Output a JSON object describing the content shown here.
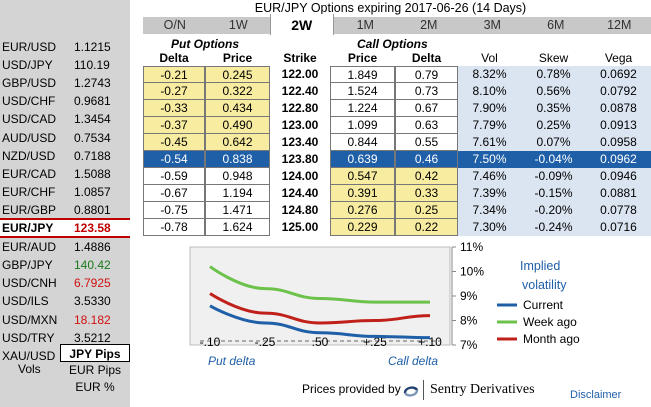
{
  "title": "EUR/JPY Options expiring 2017-06-26 (14 Days)",
  "tabs": [
    "O/N",
    "1W",
    "2W",
    "1M",
    "2M",
    "3M",
    "6M",
    "12M"
  ],
  "active_tab": "2W",
  "sidebar": {
    "pairs": [
      {
        "name": "EUR/USD",
        "rate": "1.1215",
        "state": "normal"
      },
      {
        "name": "USD/JPY",
        "rate": "110.19",
        "state": "normal"
      },
      {
        "name": "GBP/USD",
        "rate": "1.2743",
        "state": "normal"
      },
      {
        "name": "USD/CHF",
        "rate": "0.9681",
        "state": "normal"
      },
      {
        "name": "USD/CAD",
        "rate": "1.3454",
        "state": "normal"
      },
      {
        "name": "AUD/USD",
        "rate": "0.7534",
        "state": "normal"
      },
      {
        "name": "NZD/USD",
        "rate": "0.7188",
        "state": "normal"
      },
      {
        "name": "EUR/CAD",
        "rate": "1.5088",
        "state": "normal"
      },
      {
        "name": "EUR/CHF",
        "rate": "1.0857",
        "state": "normal"
      },
      {
        "name": "EUR/GBP",
        "rate": "0.8801",
        "state": "normal"
      },
      {
        "name": "EUR/JPY",
        "rate": "123.58",
        "state": "selected"
      },
      {
        "name": "EUR/AUD",
        "rate": "1.4886",
        "state": "normal"
      },
      {
        "name": "GBP/JPY",
        "rate": "140.42",
        "state": "up"
      },
      {
        "name": "USD/CNH",
        "rate": "6.7925",
        "state": "down"
      },
      {
        "name": "USD/ILS",
        "rate": "3.5330",
        "state": "normal"
      },
      {
        "name": "USD/MXN",
        "rate": "18.182",
        "state": "down"
      },
      {
        "name": "USD/TRY",
        "rate": "3.5212",
        "state": "normal"
      },
      {
        "name": "XAU/USD",
        "rate": "1267.4",
        "state": "normal"
      }
    ],
    "units_label": "Vols",
    "units": [
      "JPY Pips",
      "EUR Pips",
      "EUR %"
    ],
    "active_unit": "JPY Pips"
  },
  "table": {
    "put_title": "Put Options",
    "call_title": "Call Options",
    "headers": [
      "Delta",
      "Price",
      "Strike",
      "Price",
      "Delta",
      "Vol",
      "Skew",
      "Vega"
    ],
    "rows": [
      {
        "put_delta": "-0.21",
        "put_price": "0.245",
        "strike": "122.00",
        "call_price": "1.849",
        "call_delta": "0.79",
        "vol": "8.32%",
        "skew": "0.78%",
        "vega": "0.0692",
        "put_itm": false,
        "call_itm": false
      },
      {
        "put_delta": "-0.27",
        "put_price": "0.322",
        "strike": "122.40",
        "call_price": "1.524",
        "call_delta": "0.73",
        "vol": "8.10%",
        "skew": "0.56%",
        "vega": "0.0792",
        "put_itm": false,
        "call_itm": false
      },
      {
        "put_delta": "-0.33",
        "put_price": "0.434",
        "strike": "122.80",
        "call_price": "1.224",
        "call_delta": "0.67",
        "vol": "7.90%",
        "skew": "0.35%",
        "vega": "0.0878",
        "put_itm": false,
        "call_itm": false
      },
      {
        "put_delta": "-0.37",
        "put_price": "0.490",
        "strike": "123.00",
        "call_price": "1.099",
        "call_delta": "0.63",
        "vol": "7.79%",
        "skew": "0.25%",
        "vega": "0.0913",
        "put_itm": false,
        "call_itm": false
      },
      {
        "put_delta": "-0.45",
        "put_price": "0.642",
        "strike": "123.40",
        "call_price": "0.844",
        "call_delta": "0.55",
        "vol": "7.61%",
        "skew": "0.07%",
        "vega": "0.0958",
        "put_itm": false,
        "call_itm": false
      },
      {
        "put_delta": "-0.54",
        "put_price": "0.838",
        "strike": "123.80",
        "call_price": "0.639",
        "call_delta": "0.46",
        "vol": "7.50%",
        "skew": "-0.04%",
        "vega": "0.0962",
        "put_itm": false,
        "call_itm": false,
        "atm": true
      },
      {
        "put_delta": "-0.59",
        "put_price": "0.948",
        "strike": "124.00",
        "call_price": "0.547",
        "call_delta": "0.42",
        "vol": "7.46%",
        "skew": "-0.09%",
        "vega": "0.0946",
        "put_itm": true,
        "call_itm": true
      },
      {
        "put_delta": "-0.67",
        "put_price": "1.194",
        "strike": "124.40",
        "call_price": "0.391",
        "call_delta": "0.33",
        "vol": "7.39%",
        "skew": "-0.15%",
        "vega": "0.0881",
        "put_itm": true,
        "call_itm": true
      },
      {
        "put_delta": "-0.75",
        "put_price": "1.471",
        "strike": "124.80",
        "call_price": "0.276",
        "call_delta": "0.25",
        "vol": "7.34%",
        "skew": "-0.20%",
        "vega": "0.0778",
        "put_itm": true,
        "call_itm": true
      },
      {
        "put_delta": "-0.78",
        "put_price": "1.624",
        "strike": "125.00",
        "call_price": "0.229",
        "call_delta": "0.22",
        "vol": "7.30%",
        "skew": "-0.24%",
        "vega": "0.0716",
        "put_itm": true,
        "call_itm": true
      }
    ]
  },
  "chart_data": {
    "type": "line",
    "title": "Implied volatility",
    "x_tick_labels": [
      "-.10",
      "-.25",
      ".50",
      "+.25",
      "+.10"
    ],
    "x": [
      -0.1,
      -0.25,
      0.5,
      0.25,
      0.1
    ],
    "y_tick_labels": [
      "11%",
      "10%",
      "9%",
      "8%",
      "7%"
    ],
    "ylim": [
      7,
      11
    ],
    "x_group_labels": [
      "Put delta",
      "Call delta"
    ],
    "series": [
      {
        "name": "Current",
        "color": "#1f5fa8",
        "values": [
          8.6,
          7.9,
          7.5,
          7.35,
          7.3
        ]
      },
      {
        "name": "Week ago",
        "color": "#6cc24a",
        "values": [
          10.2,
          9.3,
          8.9,
          8.75,
          8.75
        ]
      },
      {
        "name": "Month ago",
        "color": "#c0201a",
        "values": [
          9.1,
          8.3,
          7.9,
          8.0,
          8.2
        ]
      }
    ]
  },
  "footer": {
    "provided_by": "Prices provided by",
    "brand": "Sentry Derivatives",
    "disclaimer": "Disclaimer"
  }
}
